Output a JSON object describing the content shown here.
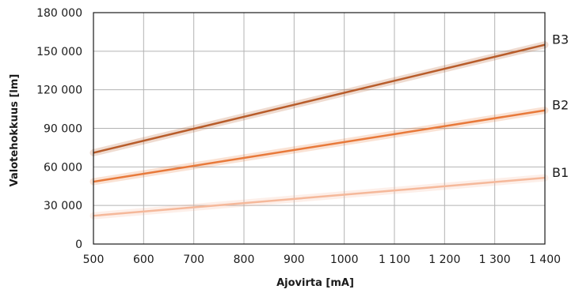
{
  "chart_data": {
    "type": "line",
    "xlabel": "Ajovirta [mA]",
    "ylabel": "Valotehokkuus [lm]",
    "xlim": [
      500,
      1400
    ],
    "ylim": [
      0,
      180000
    ],
    "x_ticks": [
      500,
      600,
      700,
      800,
      900,
      1000,
      1100,
      1200,
      1300,
      1400
    ],
    "x_tick_labels": [
      "500",
      "600",
      "700",
      "800",
      "900",
      "1000",
      "1 100",
      "1 200",
      "1 300",
      "1 400"
    ],
    "y_ticks": [
      0,
      30000,
      60000,
      90000,
      120000,
      150000,
      180000
    ],
    "y_tick_labels": [
      "0",
      "30 000",
      "60 000",
      "90 000",
      "120 000",
      "150 000",
      "180 000"
    ],
    "grid": true,
    "series": [
      {
        "name": "B3",
        "color": "#b85c2a",
        "x": [
          500,
          1400
        ],
        "y": [
          71000,
          155000
        ]
      },
      {
        "name": "B2",
        "color": "#e8793a",
        "x": [
          500,
          1400
        ],
        "y": [
          48500,
          104000
        ]
      },
      {
        "name": "B1",
        "color": "#f5b89a",
        "x": [
          500,
          1400
        ],
        "y": [
          22000,
          51500
        ]
      }
    ]
  }
}
